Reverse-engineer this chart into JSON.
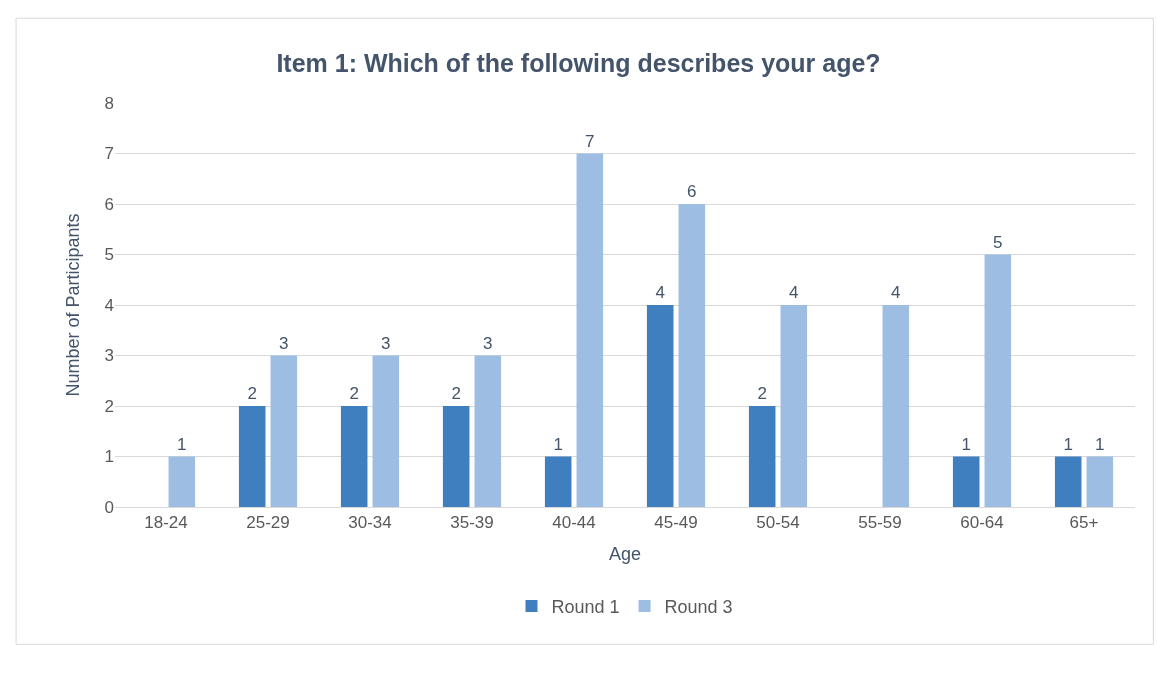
{
  "chart_data": {
    "type": "bar",
    "title": "Item 1: Which of the following describes your age?",
    "xlabel": "Age",
    "ylabel": "Number of Participants",
    "categories": [
      "18-24",
      "25-29",
      "30-34",
      "35-39",
      "40-44",
      "45-49",
      "50-54",
      "55-59",
      "60-64",
      "65+"
    ],
    "series": [
      {
        "name": "Round 1",
        "color": "#3f7fbf",
        "values": [
          null,
          2,
          2,
          2,
          1,
          4,
          2,
          null,
          1,
          1
        ]
      },
      {
        "name": "Round 3",
        "color": "#9dbde3",
        "values": [
          1,
          3,
          3,
          3,
          7,
          6,
          4,
          4,
          5,
          1
        ]
      }
    ],
    "ylim": [
      0,
      8
    ],
    "yticks": [
      0,
      1,
      2,
      3,
      4,
      5,
      6,
      7,
      8
    ],
    "grid": "y",
    "legend": "bottom",
    "data_labels": true
  }
}
